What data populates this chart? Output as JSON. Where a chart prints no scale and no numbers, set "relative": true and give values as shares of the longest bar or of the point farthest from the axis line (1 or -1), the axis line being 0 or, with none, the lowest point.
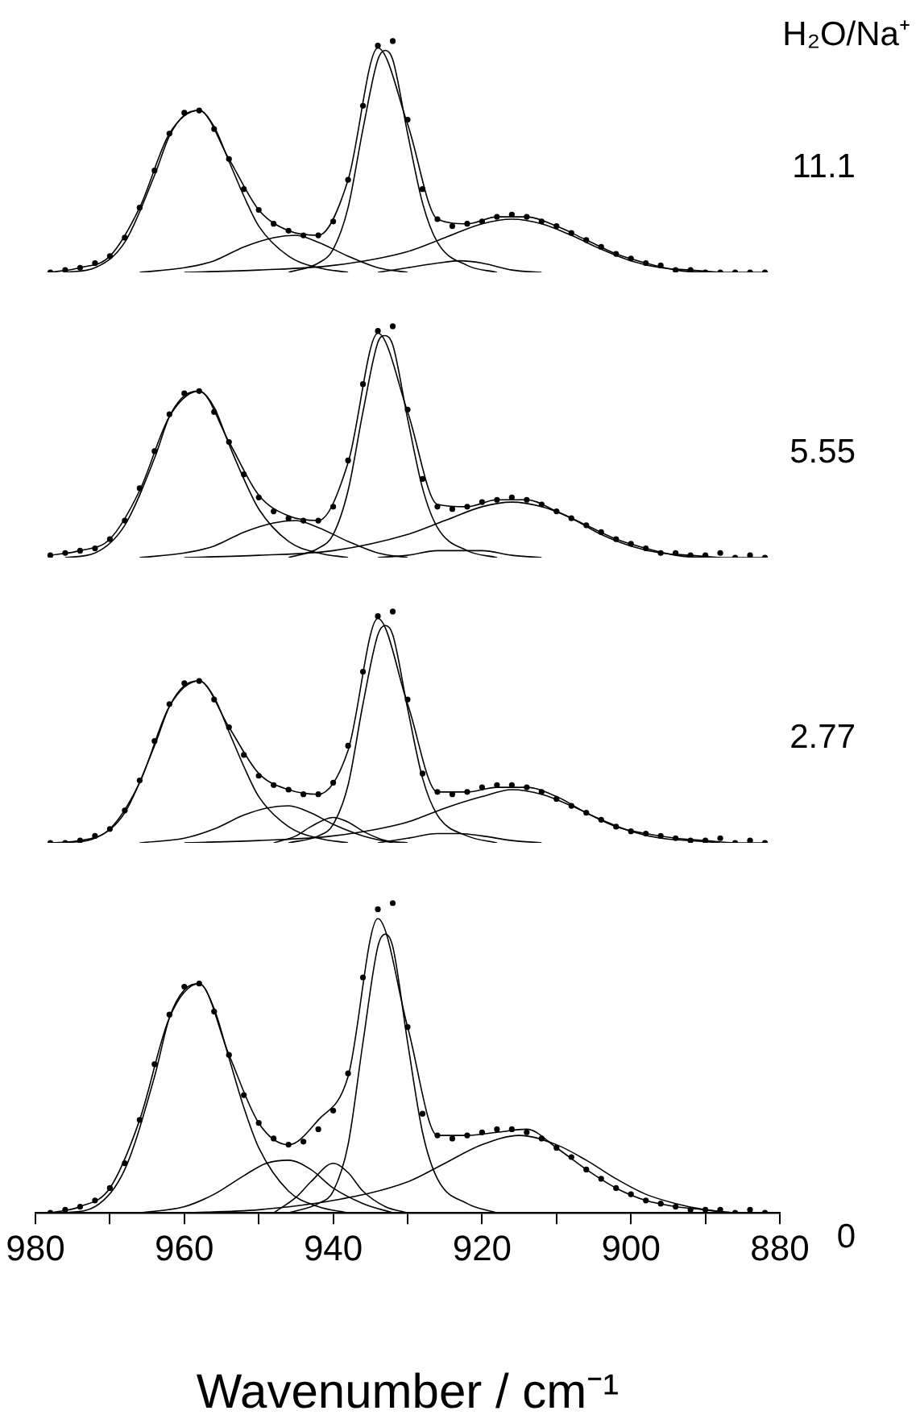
{
  "chart_data": [
    {
      "type": "line",
      "relative": true,
      "xlim": [
        980,
        880
      ],
      "tick_labels": false,
      "annotations": [
        "H₂O/Na⁺",
        "11.1"
      ],
      "x": [
        978,
        976,
        974,
        972,
        970,
        968,
        966,
        964,
        962,
        960,
        958,
        956,
        954,
        952,
        950,
        948,
        946,
        944,
        942,
        940,
        938,
        936,
        934,
        932,
        930,
        928,
        926,
        924,
        922,
        920,
        918,
        916,
        914,
        912,
        910,
        908,
        906,
        904,
        902,
        900,
        898,
        896,
        894,
        892,
        890,
        888,
        886,
        884,
        882
      ],
      "series": [
        {
          "type": "scatter",
          "marker": "circle",
          "color": "#000000",
          "values": [
            0,
            0.01,
            0.02,
            0.04,
            0.07,
            0.15,
            0.28,
            0.44,
            0.6,
            0.69,
            0.7,
            0.62,
            0.49,
            0.36,
            0.27,
            0.21,
            0.18,
            0.16,
            0.16,
            0.22,
            0.4,
            0.72,
            0.98,
            1,
            0.66,
            0.36,
            0.23,
            0.2,
            0.21,
            0.22,
            0.24,
            0.25,
            0.24,
            0.22,
            0.2,
            0.17,
            0.14,
            0.11,
            0.08,
            0.06,
            0.04,
            0.03,
            0.01,
            0.01,
            0,
            0,
            0,
            0,
            0
          ]
        },
        {
          "type": "line",
          "color": "#000000",
          "x": [
            978,
            974,
            970,
            966,
            962,
            958,
            954,
            950,
            946,
            942,
            938,
            934,
            930,
            926,
            922,
            918,
            914,
            910,
            906,
            902,
            898,
            894,
            890,
            886,
            882
          ],
          "values": [
            0,
            0.02,
            0.07,
            0.28,
            0.6,
            0.7,
            0.49,
            0.27,
            0.18,
            0.16,
            0.4,
            0.97,
            0.64,
            0.23,
            0.21,
            0.24,
            0.24,
            0.2,
            0.14,
            0.08,
            0.04,
            0.01,
            0,
            0,
            0
          ]
        },
        {
          "type": "line",
          "color": "#000000",
          "x": [
            976,
            972,
            968,
            964,
            962,
            960,
            958,
            956,
            954,
            952,
            950,
            946,
            942,
            938
          ],
          "values": [
            0,
            0.02,
            0.13,
            0.42,
            0.59,
            0.68,
            0.7,
            0.63,
            0.48,
            0.33,
            0.2,
            0.07,
            0.02,
            0
          ]
        },
        {
          "type": "line",
          "color": "#000000",
          "x": [
            966,
            960,
            956,
            952,
            948,
            945,
            942,
            938,
            934,
            930
          ],
          "values": [
            0,
            0.02,
            0.05,
            0.11,
            0.15,
            0.16,
            0.13,
            0.07,
            0.02,
            0
          ]
        },
        {
          "type": "line",
          "color": "#000000",
          "x": [
            946,
            942,
            940,
            938,
            936,
            934,
            933,
            932,
            930,
            928,
            926,
            922,
            918
          ],
          "values": [
            0,
            0.04,
            0.1,
            0.28,
            0.62,
            0.92,
            0.96,
            0.92,
            0.6,
            0.3,
            0.13,
            0.03,
            0
          ]
        },
        {
          "type": "line",
          "color": "#000000",
          "x": [
            934,
            930,
            926,
            923,
            920,
            916,
            912
          ],
          "values": [
            0,
            0.02,
            0.04,
            0.05,
            0.04,
            0.01,
            0
          ]
        },
        {
          "type": "line",
          "color": "#000000",
          "x": [
            960,
            950,
            940,
            930,
            925,
            920,
            916,
            912,
            908,
            904,
            900,
            896,
            892,
            888
          ],
          "values": [
            0,
            0.01,
            0.03,
            0.09,
            0.15,
            0.21,
            0.23,
            0.21,
            0.16,
            0.1,
            0.05,
            0.02,
            0.01,
            0
          ]
        }
      ]
    },
    {
      "type": "line",
      "relative": true,
      "xlim": [
        980,
        880
      ],
      "tick_labels": false,
      "annotations": [
        "5.55"
      ],
      "x": [
        978,
        976,
        974,
        972,
        970,
        968,
        966,
        964,
        962,
        960,
        958,
        956,
        954,
        952,
        950,
        948,
        946,
        944,
        942,
        940,
        938,
        936,
        934,
        932,
        930,
        928,
        926,
        924,
        922,
        920,
        918,
        916,
        914,
        912,
        910,
        908,
        906,
        904,
        902,
        900,
        898,
        896,
        894,
        892,
        890,
        888,
        886,
        884,
        882
      ],
      "series": [
        {
          "type": "scatter",
          "marker": "circle",
          "color": "#000000",
          "values": [
            0.01,
            0.02,
            0.03,
            0.04,
            0.08,
            0.16,
            0.3,
            0.46,
            0.62,
            0.71,
            0.72,
            0.63,
            0.5,
            0.36,
            0.26,
            0.2,
            0.17,
            0.16,
            0.16,
            0.22,
            0.42,
            0.75,
            0.98,
            1,
            0.64,
            0.34,
            0.22,
            0.21,
            0.22,
            0.24,
            0.25,
            0.26,
            0.25,
            0.23,
            0.2,
            0.17,
            0.14,
            0.11,
            0.08,
            0.06,
            0.04,
            0.02,
            0.02,
            0.01,
            0.01,
            0.02,
            0,
            0.01,
            0
          ]
        },
        {
          "type": "line",
          "color": "#000000",
          "x": [
            978,
            974,
            970,
            966,
            962,
            958,
            954,
            950,
            946,
            942,
            938,
            934,
            930,
            926,
            922,
            918,
            914,
            910,
            906,
            902,
            898,
            894,
            890,
            886,
            882
          ],
          "values": [
            0.01,
            0.03,
            0.08,
            0.29,
            0.61,
            0.72,
            0.5,
            0.27,
            0.18,
            0.16,
            0.41,
            0.97,
            0.63,
            0.23,
            0.22,
            0.25,
            0.25,
            0.2,
            0.14,
            0.08,
            0.04,
            0.01,
            0,
            0,
            0
          ]
        },
        {
          "type": "line",
          "color": "#000000",
          "x": [
            976,
            972,
            968,
            964,
            962,
            960,
            958,
            956,
            954,
            952,
            950,
            946,
            942,
            938
          ],
          "values": [
            0,
            0.02,
            0.14,
            0.43,
            0.61,
            0.7,
            0.72,
            0.65,
            0.49,
            0.34,
            0.21,
            0.07,
            0.02,
            0
          ]
        },
        {
          "type": "line",
          "color": "#000000",
          "x": [
            966,
            960,
            956,
            952,
            948,
            945,
            942,
            938,
            934,
            930
          ],
          "values": [
            0,
            0.02,
            0.05,
            0.11,
            0.15,
            0.16,
            0.13,
            0.07,
            0.02,
            0
          ]
        },
        {
          "type": "line",
          "color": "#000000",
          "x": [
            946,
            942,
            940,
            938,
            936,
            934,
            933,
            932,
            930,
            928,
            926,
            922,
            918
          ],
          "values": [
            0,
            0.04,
            0.1,
            0.29,
            0.63,
            0.93,
            0.96,
            0.92,
            0.6,
            0.3,
            0.13,
            0.03,
            0
          ]
        },
        {
          "type": "line",
          "color": "#000000",
          "x": [
            934,
            930,
            926,
            923,
            920,
            916,
            912
          ],
          "values": [
            0,
            0.01,
            0.03,
            0.03,
            0.03,
            0.01,
            0
          ]
        },
        {
          "type": "line",
          "color": "#000000",
          "x": [
            960,
            950,
            940,
            930,
            925,
            920,
            916,
            912,
            908,
            904,
            900,
            896,
            892,
            888
          ],
          "values": [
            0,
            0.01,
            0.03,
            0.1,
            0.16,
            0.22,
            0.24,
            0.22,
            0.17,
            0.1,
            0.05,
            0.02,
            0.01,
            0
          ]
        }
      ]
    },
    {
      "type": "line",
      "relative": true,
      "xlim": [
        980,
        880
      ],
      "tick_labels": false,
      "annotations": [
        "2.77"
      ],
      "x": [
        978,
        976,
        974,
        972,
        970,
        968,
        966,
        964,
        962,
        960,
        958,
        956,
        954,
        952,
        950,
        948,
        946,
        944,
        942,
        940,
        938,
        936,
        934,
        932,
        930,
        928,
        926,
        924,
        922,
        920,
        918,
        916,
        914,
        912,
        910,
        908,
        906,
        904,
        902,
        900,
        898,
        896,
        894,
        892,
        890,
        888,
        886,
        884,
        882
      ],
      "series": [
        {
          "type": "scatter",
          "marker": "circle",
          "color": "#000000",
          "values": [
            0,
            0,
            0.01,
            0.03,
            0.06,
            0.14,
            0.27,
            0.44,
            0.6,
            0.69,
            0.7,
            0.62,
            0.5,
            0.38,
            0.29,
            0.25,
            0.23,
            0.21,
            0.21,
            0.26,
            0.42,
            0.74,
            0.98,
            1,
            0.62,
            0.3,
            0.22,
            0.21,
            0.22,
            0.24,
            0.25,
            0.25,
            0.24,
            0.22,
            0.19,
            0.16,
            0.13,
            0.1,
            0.07,
            0.05,
            0.04,
            0.03,
            0.02,
            0.01,
            0.01,
            0.02,
            0,
            0.01,
            0
          ]
        },
        {
          "type": "line",
          "color": "#000000",
          "x": [
            978,
            974,
            970,
            966,
            962,
            958,
            954,
            950,
            946,
            942,
            938,
            934,
            930,
            926,
            922,
            918,
            914,
            910,
            906,
            902,
            898,
            894,
            890,
            886,
            882
          ],
          "values": [
            0,
            0.01,
            0.06,
            0.26,
            0.59,
            0.7,
            0.5,
            0.3,
            0.23,
            0.21,
            0.4,
            0.97,
            0.6,
            0.22,
            0.22,
            0.24,
            0.24,
            0.2,
            0.13,
            0.07,
            0.04,
            0.02,
            0.01,
            0,
            0
          ]
        },
        {
          "type": "line",
          "color": "#000000",
          "x": [
            976,
            972,
            968,
            964,
            962,
            960,
            958,
            956,
            954,
            952,
            950,
            946,
            942,
            938
          ],
          "values": [
            0,
            0.02,
            0.13,
            0.42,
            0.59,
            0.68,
            0.7,
            0.63,
            0.48,
            0.33,
            0.2,
            0.07,
            0.02,
            0
          ]
        },
        {
          "type": "line",
          "color": "#000000",
          "x": [
            966,
            960,
            956,
            952,
            949,
            946,
            943,
            940,
            936,
            932
          ],
          "values": [
            0,
            0.02,
            0.06,
            0.12,
            0.15,
            0.16,
            0.13,
            0.08,
            0.03,
            0
          ]
        },
        {
          "type": "line",
          "color": "#000000",
          "x": [
            948,
            945,
            943,
            940,
            938,
            936,
            933,
            930
          ],
          "values": [
            0,
            0.03,
            0.07,
            0.11,
            0.09,
            0.05,
            0.01,
            0
          ]
        },
        {
          "type": "line",
          "color": "#000000",
          "x": [
            946,
            942,
            940,
            938,
            936,
            934,
            933,
            932,
            930,
            928,
            926,
            922,
            918
          ],
          "values": [
            0,
            0.03,
            0.08,
            0.25,
            0.6,
            0.9,
            0.94,
            0.9,
            0.58,
            0.28,
            0.12,
            0.03,
            0
          ]
        },
        {
          "type": "line",
          "color": "#000000",
          "x": [
            934,
            930,
            926,
            923,
            920,
            916,
            912
          ],
          "values": [
            0,
            0.02,
            0.04,
            0.04,
            0.03,
            0.01,
            0
          ]
        },
        {
          "type": "line",
          "color": "#000000",
          "x": [
            960,
            950,
            940,
            930,
            925,
            920,
            916,
            912,
            908,
            904,
            900,
            896,
            892,
            888
          ],
          "values": [
            0,
            0.01,
            0.03,
            0.09,
            0.15,
            0.2,
            0.23,
            0.21,
            0.16,
            0.1,
            0.05,
            0.02,
            0.01,
            0
          ]
        }
      ]
    },
    {
      "type": "line",
      "relative": true,
      "xlabel": "Wavenumber / cm⁻¹",
      "xlim": [
        980,
        880
      ],
      "xticks": [
        980,
        {
          "value": 970,
          "label": null
        },
        960,
        {
          "value": 950,
          "label": null
        },
        940,
        {
          "value": 930,
          "label": null
        },
        920,
        {
          "value": 910,
          "label": null
        },
        900,
        {
          "value": 890,
          "label": null
        },
        880
      ],
      "tick_labels": "x",
      "annotations": [
        "0"
      ],
      "x": [
        978,
        976,
        974,
        972,
        970,
        968,
        966,
        964,
        962,
        960,
        958,
        956,
        954,
        952,
        950,
        948,
        946,
        944,
        942,
        940,
        938,
        936,
        934,
        932,
        930,
        928,
        926,
        924,
        922,
        920,
        918,
        916,
        914,
        912,
        910,
        908,
        906,
        904,
        902,
        900,
        898,
        896,
        894,
        892,
        890,
        888,
        886,
        884,
        882
      ],
      "series": [
        {
          "type": "scatter",
          "marker": "circle",
          "color": "#000000",
          "values": [
            0,
            0.01,
            0.02,
            0.04,
            0.08,
            0.16,
            0.3,
            0.48,
            0.64,
            0.73,
            0.74,
            0.65,
            0.51,
            0.38,
            0.29,
            0.24,
            0.22,
            0.23,
            0.27,
            0.33,
            0.45,
            0.76,
            0.98,
            1,
            0.6,
            0.32,
            0.25,
            0.24,
            0.25,
            0.26,
            0.27,
            0.27,
            0.26,
            0.24,
            0.21,
            0.18,
            0.14,
            0.11,
            0.08,
            0.06,
            0.04,
            0.03,
            0.02,
            0.01,
            0.01,
            0.01,
            0,
            0.01,
            0
          ]
        },
        {
          "type": "line",
          "color": "#000000",
          "x": [
            978,
            974,
            970,
            966,
            962,
            958,
            954,
            950,
            946,
            942,
            938,
            934,
            930,
            926,
            922,
            918,
            914,
            910,
            906,
            902,
            898,
            894,
            890,
            886,
            882
          ],
          "values": [
            0,
            0.02,
            0.08,
            0.3,
            0.63,
            0.74,
            0.51,
            0.29,
            0.22,
            0.3,
            0.44,
            0.95,
            0.6,
            0.25,
            0.25,
            0.26,
            0.27,
            0.21,
            0.14,
            0.08,
            0.04,
            0.02,
            0.01,
            0,
            0
          ]
        },
        {
          "type": "line",
          "color": "#000000",
          "x": [
            976,
            972,
            968,
            964,
            962,
            960,
            958,
            956,
            954,
            952,
            950,
            946,
            942,
            938
          ],
          "values": [
            0,
            0.02,
            0.14,
            0.44,
            0.63,
            0.72,
            0.74,
            0.66,
            0.5,
            0.34,
            0.21,
            0.07,
            0.02,
            0
          ]
        },
        {
          "type": "line",
          "color": "#000000",
          "x": [
            966,
            960,
            956,
            952,
            949,
            946,
            943,
            940,
            936,
            932
          ],
          "values": [
            0,
            0.02,
            0.06,
            0.12,
            0.16,
            0.17,
            0.14,
            0.08,
            0.03,
            0
          ]
        },
        {
          "type": "line",
          "color": "#000000",
          "x": [
            948,
            945,
            943,
            940,
            938,
            936,
            933,
            930
          ],
          "values": [
            0,
            0.05,
            0.1,
            0.16,
            0.13,
            0.07,
            0.02,
            0
          ]
        },
        {
          "type": "line",
          "color": "#000000",
          "x": [
            946,
            942,
            940,
            938,
            936,
            934,
            933,
            932,
            930,
            928,
            926,
            922,
            918
          ],
          "values": [
            0,
            0.03,
            0.07,
            0.22,
            0.55,
            0.86,
            0.9,
            0.86,
            0.55,
            0.26,
            0.11,
            0.03,
            0
          ]
        },
        {
          "type": "line",
          "color": "#000000",
          "x": [
            960,
            950,
            940,
            930,
            925,
            920,
            915,
            910,
            906,
            902,
            898,
            894,
            890,
            886
          ],
          "values": [
            0,
            0.01,
            0.04,
            0.1,
            0.16,
            0.22,
            0.25,
            0.22,
            0.17,
            0.11,
            0.06,
            0.03,
            0.01,
            0
          ]
        }
      ]
    }
  ]
}
